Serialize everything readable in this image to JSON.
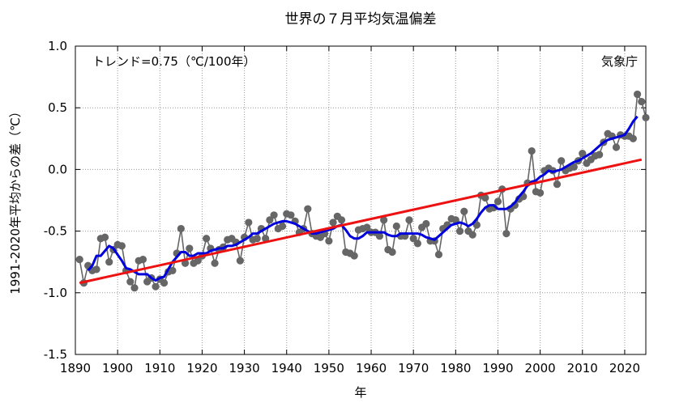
{
  "chart_data": {
    "type": "line",
    "title": "世界の７月平均気温偏差",
    "xlabel": "年",
    "ylabel": "1991-2020年平均からの差（℃）",
    "trend_text": "トレンド=0.75（℃/100年）",
    "source_text": "気象庁",
    "xlim": [
      1890,
      2025
    ],
    "ylim": [
      -1.5,
      1.0
    ],
    "x_ticks": [
      1890,
      1900,
      1910,
      1920,
      1930,
      1940,
      1950,
      1960,
      1970,
      1980,
      1990,
      2000,
      2010,
      2020
    ],
    "y_ticks": [
      -1.5,
      -1.0,
      -0.5,
      0.0,
      0.5,
      1.0
    ],
    "y_tick_labels": [
      "-1.5",
      "-1.0",
      "-0.5",
      "0.0",
      "0.5",
      "1.0"
    ],
    "grid": true,
    "colors": {
      "annual": "#666666",
      "moving_average": "#0000dd",
      "trend": "#ee1111"
    },
    "series": [
      {
        "kind": "annual",
        "x": [
          1891,
          1892,
          1893,
          1894,
          1895,
          1896,
          1897,
          1898,
          1899,
          1900,
          1901,
          1902,
          1903,
          1904,
          1905,
          1906,
          1907,
          1908,
          1909,
          1910,
          1911,
          1912,
          1913,
          1914,
          1915,
          1916,
          1917,
          1918,
          1919,
          1920,
          1921,
          1922,
          1923,
          1924,
          1925,
          1926,
          1927,
          1928,
          1929,
          1930,
          1931,
          1932,
          1933,
          1934,
          1935,
          1936,
          1937,
          1938,
          1939,
          1940,
          1941,
          1942,
          1943,
          1944,
          1945,
          1946,
          1947,
          1948,
          1949,
          1950,
          1951,
          1952,
          1953,
          1954,
          1955,
          1956,
          1957,
          1958,
          1959,
          1960,
          1961,
          1962,
          1963,
          1964,
          1965,
          1966,
          1967,
          1968,
          1969,
          1970,
          1971,
          1972,
          1973,
          1974,
          1975,
          1976,
          1977,
          1978,
          1979,
          1980,
          1981,
          1982,
          1983,
          1984,
          1985,
          1986,
          1987,
          1988,
          1989,
          1990,
          1991,
          1992,
          1993,
          1994,
          1995,
          1996,
          1997,
          1998,
          1999,
          2000,
          2001,
          2002,
          2003,
          2004,
          2005,
          2006,
          2007,
          2008,
          2009,
          2010,
          2011,
          2012,
          2013,
          2014,
          2015,
          2016,
          2017,
          2018,
          2019,
          2020,
          2021,
          2022,
          2023,
          2024,
          2025
        ],
        "y": [
          -0.73,
          -0.92,
          -0.78,
          -0.82,
          -0.81,
          -0.56,
          -0.55,
          -0.75,
          -0.65,
          -0.61,
          -0.62,
          -0.82,
          -0.91,
          -0.96,
          -0.74,
          -0.73,
          -0.91,
          -0.88,
          -0.95,
          -0.89,
          -0.92,
          -0.83,
          -0.82,
          -0.68,
          -0.48,
          -0.76,
          -0.64,
          -0.76,
          -0.74,
          -0.7,
          -0.56,
          -0.64,
          -0.76,
          -0.65,
          -0.63,
          -0.57,
          -0.56,
          -0.59,
          -0.74,
          -0.55,
          -0.43,
          -0.57,
          -0.56,
          -0.48,
          -0.56,
          -0.41,
          -0.37,
          -0.48,
          -0.46,
          -0.36,
          -0.37,
          -0.42,
          -0.51,
          -0.48,
          -0.32,
          -0.52,
          -0.54,
          -0.55,
          -0.52,
          -0.58,
          -0.43,
          -0.38,
          -0.41,
          -0.67,
          -0.68,
          -0.7,
          -0.49,
          -0.48,
          -0.47,
          -0.51,
          -0.51,
          -0.54,
          -0.41,
          -0.65,
          -0.67,
          -0.46,
          -0.54,
          -0.54,
          -0.41,
          -0.56,
          -0.6,
          -0.47,
          -0.44,
          -0.58,
          -0.58,
          -0.69,
          -0.48,
          -0.45,
          -0.4,
          -0.41,
          -0.5,
          -0.34,
          -0.5,
          -0.53,
          -0.45,
          -0.21,
          -0.23,
          -0.32,
          -0.31,
          -0.26,
          -0.16,
          -0.52,
          -0.32,
          -0.29,
          -0.24,
          -0.22,
          -0.11,
          0.15,
          -0.18,
          -0.19,
          -0.01,
          0.01,
          -0.01,
          -0.12,
          0.07,
          -0.01,
          0.01,
          0.02,
          0.07,
          0.13,
          0.05,
          0.08,
          0.11,
          0.12,
          0.22,
          0.29,
          0.27,
          0.18,
          0.28,
          0.27,
          0.27,
          0.25,
          0.61,
          0.55,
          0.42
        ]
      },
      {
        "kind": "moving_average",
        "x": [
          1893,
          1894,
          1895,
          1896,
          1897,
          1898,
          1899,
          1900,
          1901,
          1902,
          1903,
          1904,
          1905,
          1906,
          1907,
          1908,
          1909,
          1910,
          1911,
          1912,
          1913,
          1914,
          1915,
          1916,
          1917,
          1918,
          1919,
          1920,
          1921,
          1922,
          1923,
          1924,
          1925,
          1926,
          1927,
          1928,
          1929,
          1930,
          1931,
          1932,
          1933,
          1934,
          1935,
          1936,
          1937,
          1938,
          1939,
          1940,
          1941,
          1942,
          1943,
          1944,
          1945,
          1946,
          1947,
          1948,
          1949,
          1950,
          1951,
          1952,
          1953,
          1954,
          1955,
          1956,
          1957,
          1958,
          1959,
          1960,
          1961,
          1962,
          1963,
          1964,
          1965,
          1966,
          1967,
          1968,
          1969,
          1970,
          1971,
          1972,
          1973,
          1974,
          1975,
          1976,
          1977,
          1978,
          1979,
          1980,
          1981,
          1982,
          1983,
          1984,
          1985,
          1986,
          1987,
          1988,
          1989,
          1990,
          1991,
          1992,
          1993,
          1994,
          1995,
          1996,
          1997,
          1998,
          1999,
          2000,
          2001,
          2002,
          2003,
          2004,
          2005,
          2006,
          2007,
          2008,
          2009,
          2010,
          2011,
          2012,
          2013,
          2014,
          2015,
          2016,
          2017,
          2018,
          2019,
          2020,
          2021,
          2022,
          2023
        ],
        "y": [
          -0.82,
          -0.78,
          -0.7,
          -0.7,
          -0.66,
          -0.62,
          -0.64,
          -0.69,
          -0.74,
          -0.8,
          -0.81,
          -0.83,
          -0.85,
          -0.85,
          -0.85,
          -0.88,
          -0.9,
          -0.88,
          -0.87,
          -0.81,
          -0.75,
          -0.71,
          -0.67,
          -0.67,
          -0.7,
          -0.7,
          -0.68,
          -0.68,
          -0.68,
          -0.66,
          -0.65,
          -0.64,
          -0.64,
          -0.62,
          -0.62,
          -0.61,
          -0.59,
          -0.57,
          -0.55,
          -0.52,
          -0.52,
          -0.5,
          -0.48,
          -0.46,
          -0.44,
          -0.43,
          -0.42,
          -0.42,
          -0.43,
          -0.44,
          -0.46,
          -0.48,
          -0.5,
          -0.52,
          -0.52,
          -0.51,
          -0.5,
          -0.49,
          -0.48,
          -0.46,
          -0.45,
          -0.49,
          -0.54,
          -0.56,
          -0.56,
          -0.54,
          -0.51,
          -0.51,
          -0.51,
          -0.51,
          -0.51,
          -0.53,
          -0.54,
          -0.54,
          -0.52,
          -0.52,
          -0.52,
          -0.52,
          -0.52,
          -0.53,
          -0.55,
          -0.56,
          -0.57,
          -0.54,
          -0.51,
          -0.48,
          -0.45,
          -0.44,
          -0.43,
          -0.44,
          -0.46,
          -0.44,
          -0.4,
          -0.35,
          -0.31,
          -0.29,
          -0.29,
          -0.32,
          -0.32,
          -0.32,
          -0.3,
          -0.27,
          -0.22,
          -0.18,
          -0.13,
          -0.1,
          -0.09,
          -0.06,
          -0.04,
          -0.01,
          -0.02,
          -0.01,
          0.0,
          0.02,
          0.04,
          0.06,
          0.07,
          0.09,
          0.11,
          0.13,
          0.16,
          0.19,
          0.22,
          0.24,
          0.25,
          0.26,
          0.27,
          0.28,
          0.33,
          0.39,
          0.43
        ]
      },
      {
        "kind": "trend",
        "x": [
          1891,
          2024
        ],
        "y": [
          -0.92,
          0.08
        ]
      }
    ]
  }
}
